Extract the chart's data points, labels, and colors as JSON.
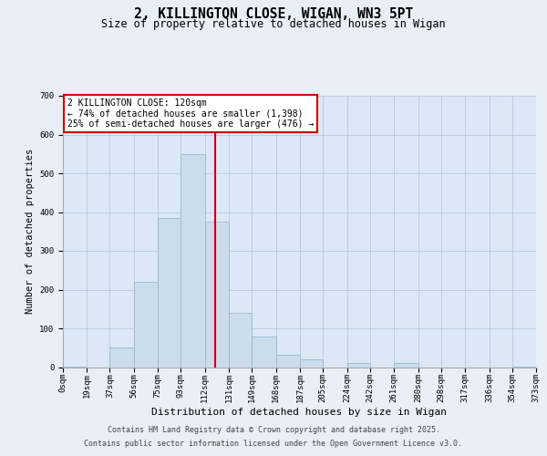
{
  "title": "2, KILLINGTON CLOSE, WIGAN, WN3 5PT",
  "subtitle": "Size of property relative to detached houses in Wigan",
  "xlabel": "Distribution of detached houses by size in Wigan",
  "ylabel": "Number of detached properties",
  "bin_edges": [
    0,
    19,
    37,
    56,
    75,
    93,
    112,
    131,
    149,
    168,
    187,
    205,
    224,
    242,
    261,
    280,
    298,
    317,
    336,
    354,
    373
  ],
  "bar_heights": [
    2,
    0,
    50,
    220,
    385,
    550,
    375,
    140,
    80,
    32,
    20,
    0,
    10,
    0,
    10,
    0,
    0,
    0,
    0,
    2
  ],
  "bar_color": "#cddceb",
  "bar_edge_color": "#8ab4d4",
  "background_color": "#e8eff7",
  "plot_bg_color": "#dce8f5",
  "grid_color": "#b0c4d8",
  "vline_x": 120,
  "vline_color": "#cc0000",
  "annotation_text": "2 KILLINGTON CLOSE: 120sqm\n← 74% of detached houses are smaller (1,398)\n25% of semi-detached houses are larger (476) →",
  "annotation_box_color": "#cc0000",
  "ylim": [
    0,
    700
  ],
  "yticks": [
    0,
    100,
    200,
    300,
    400,
    500,
    600,
    700
  ],
  "xtick_labels": [
    "0sqm",
    "19sqm",
    "37sqm",
    "56sqm",
    "75sqm",
    "93sqm",
    "112sqm",
    "131sqm",
    "149sqm",
    "168sqm",
    "187sqm",
    "205sqm",
    "224sqm",
    "242sqm",
    "261sqm",
    "280sqm",
    "298sqm",
    "317sqm",
    "336sqm",
    "354sqm",
    "373sqm"
  ],
  "footer_line1": "Contains HM Land Registry data © Crown copyright and database right 2025.",
  "footer_line2": "Contains public sector information licensed under the Open Government Licence v3.0.",
  "title_fontsize": 10.5,
  "subtitle_fontsize": 8.5,
  "axis_label_fontsize": 7.5,
  "tick_fontsize": 6.5,
  "footer_fontsize": 6.0,
  "annotation_fontsize": 7.0
}
